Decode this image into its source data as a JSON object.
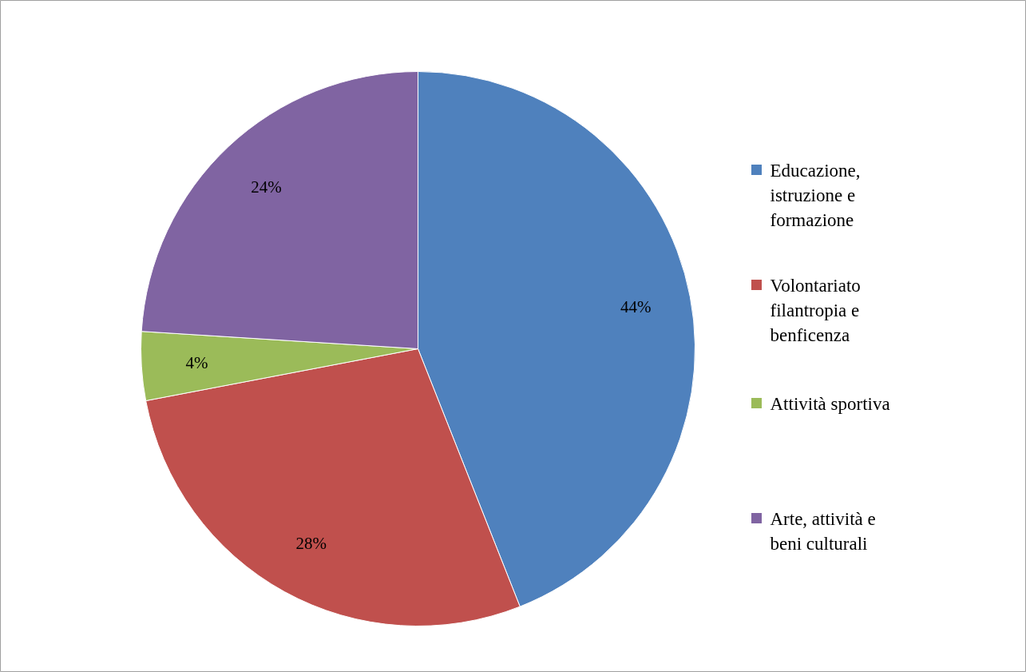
{
  "chart_data": {
    "type": "pie",
    "categories": [
      "Educazione, istruzione e formazione",
      "Volontariato filantropia e benficenza",
      "Attività sportiva",
      "Arte, attività e beni culturali"
    ],
    "values": [
      44,
      28,
      4,
      24
    ],
    "colors": [
      "#4f81bd",
      "#c0504d",
      "#9bbb59",
      "#8064a2"
    ],
    "value_labels": [
      "44%",
      "28%",
      "4%",
      "24%"
    ],
    "legend": "right"
  }
}
